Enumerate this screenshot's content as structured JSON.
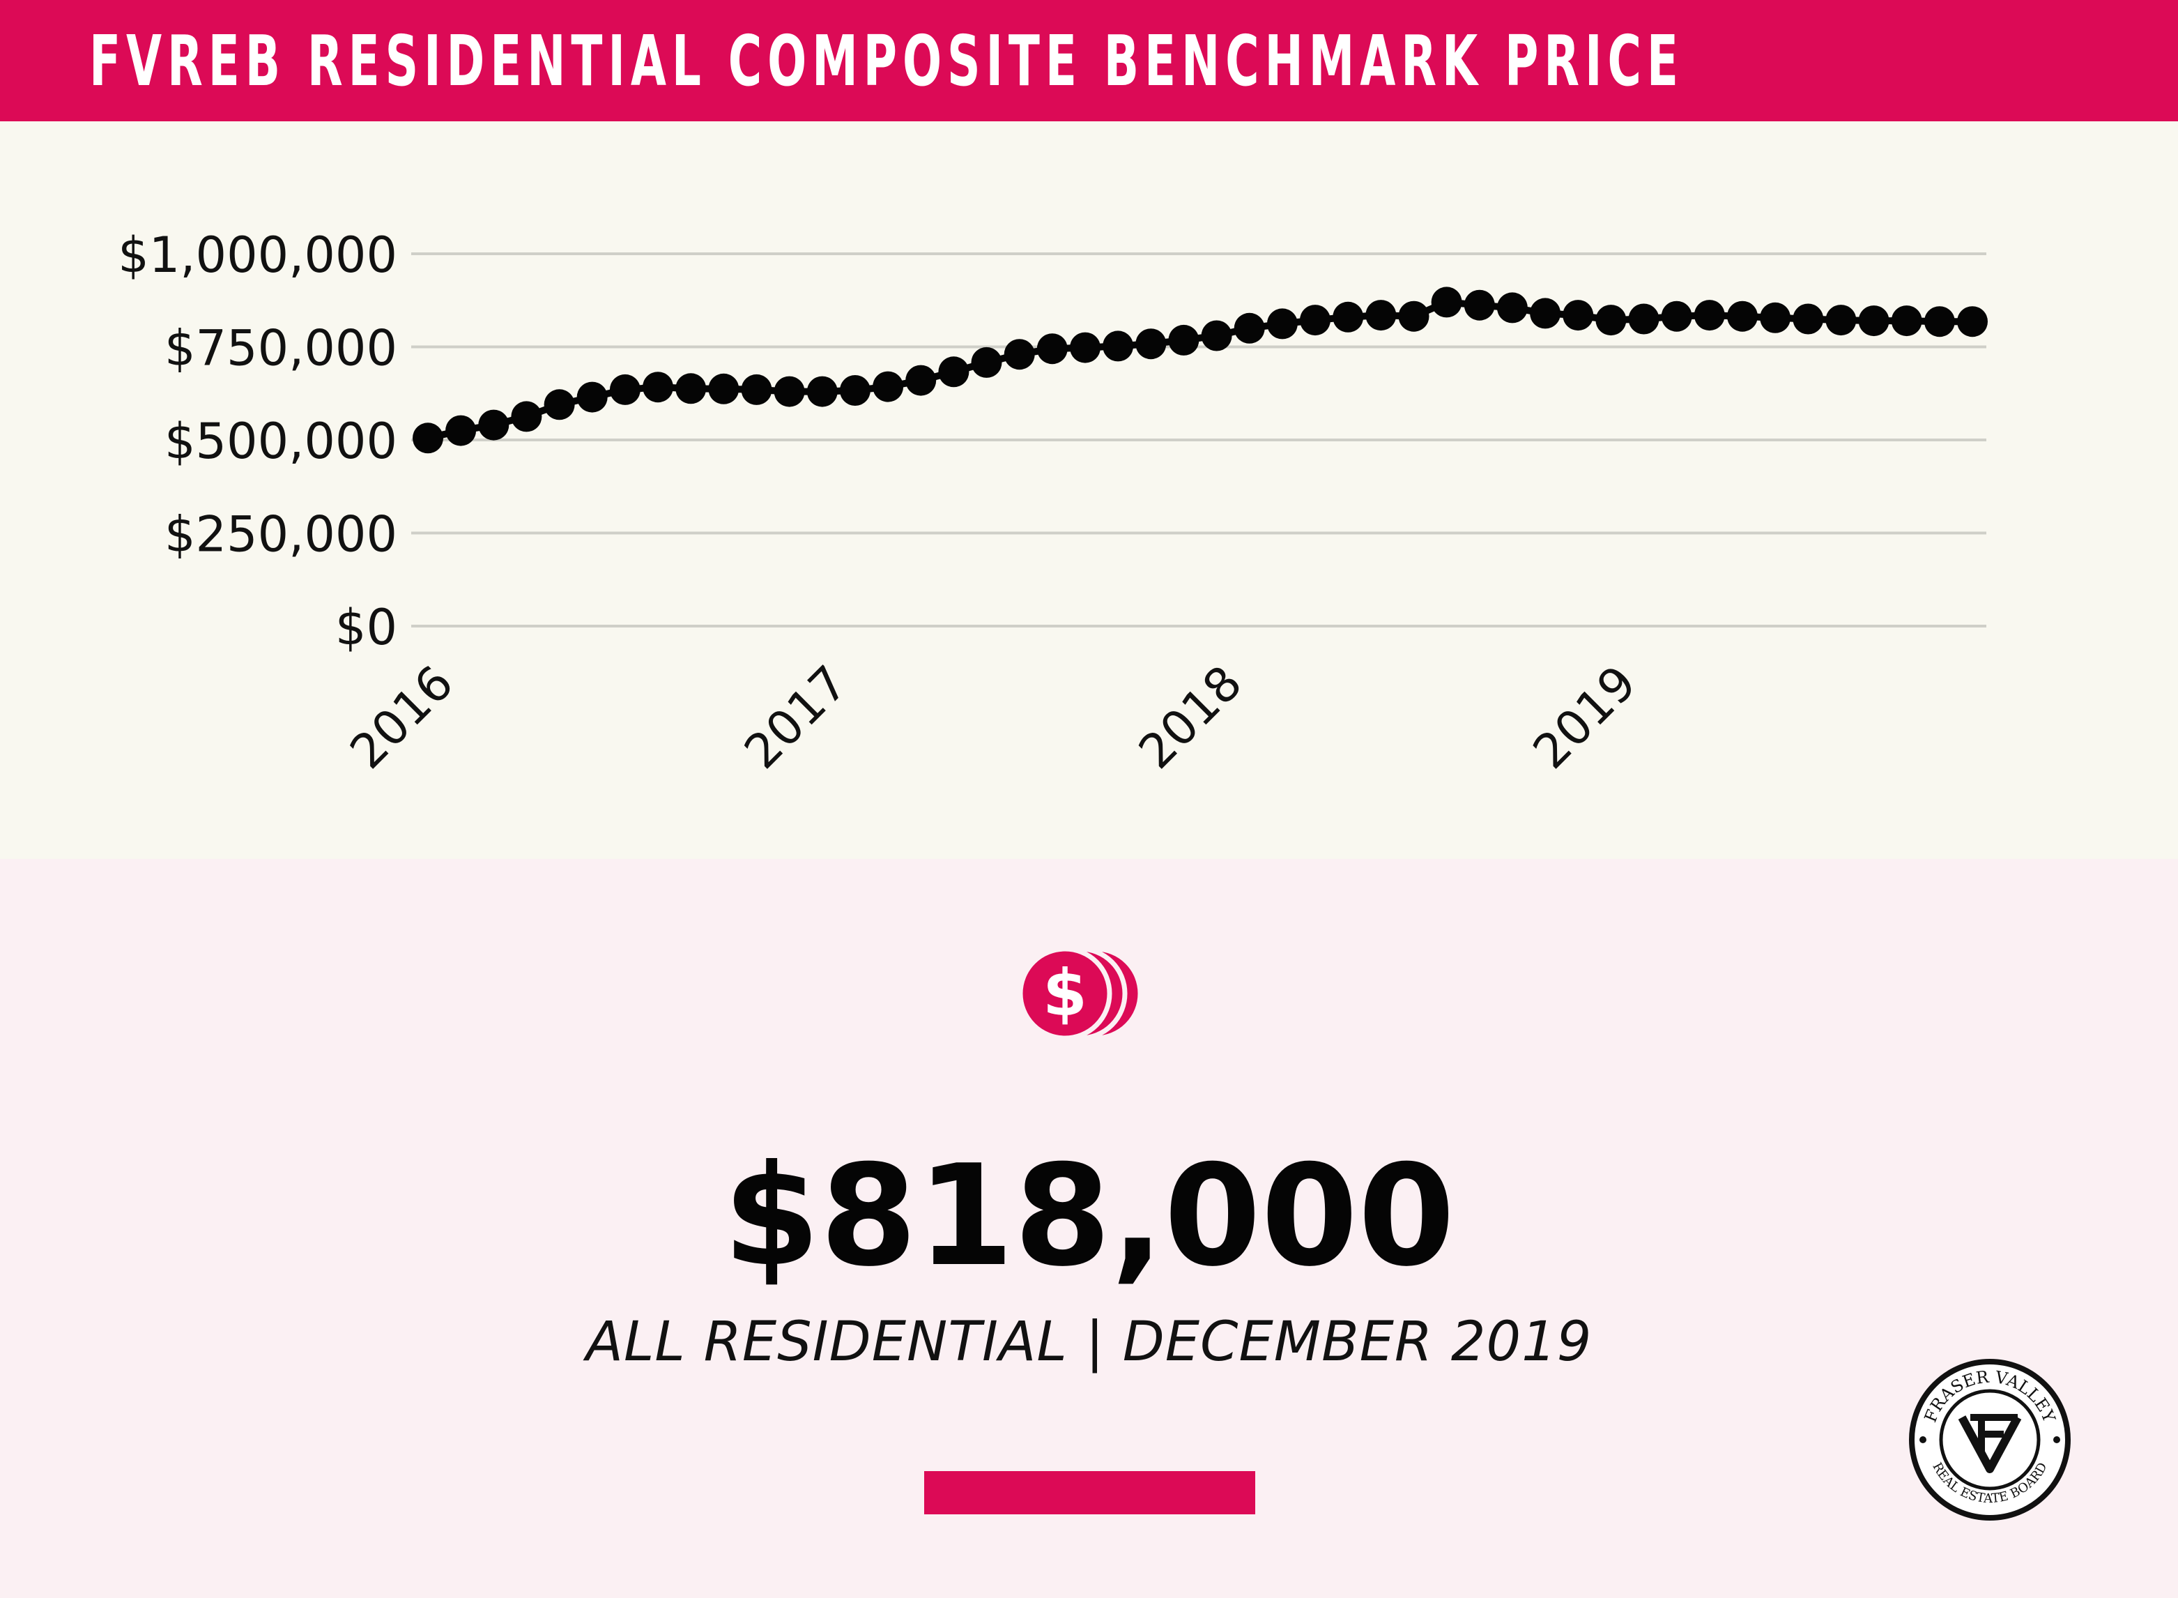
{
  "header": {
    "title": "FVREB RESIDENTIAL COMPOSITE BENCHMARK PRICE"
  },
  "chart_data": {
    "type": "line",
    "title": "",
    "xlabel": "",
    "ylabel": "",
    "x_tick_labels": [
      "2016",
      "2017",
      "2018",
      "2019"
    ],
    "y_tick_labels": [
      "$0",
      "$250,000",
      "$500,000",
      "$750,000",
      "$1,000,000"
    ],
    "y_ticks": [
      0,
      250000,
      500000,
      750000,
      1000000
    ],
    "ylim": [
      0,
      1000000
    ],
    "grid": true,
    "legend": "none",
    "series": [
      {
        "x": [
          "2016-01",
          "2016-02",
          "2016-03",
          "2016-04",
          "2016-05",
          "2016-06",
          "2016-07",
          "2016-08",
          "2016-09",
          "2016-10",
          "2016-11",
          "2016-12",
          "2017-01",
          "2017-02",
          "2017-03",
          "2017-04",
          "2017-05",
          "2017-06",
          "2017-07",
          "2017-08",
          "2017-09",
          "2017-10",
          "2017-11",
          "2017-12",
          "2018-01",
          "2018-02",
          "2018-03",
          "2018-04",
          "2018-05",
          "2018-06",
          "2018-07",
          "2018-08",
          "2018-09",
          "2018-10",
          "2018-11",
          "2018-12",
          "2019-01",
          "2019-02",
          "2019-03",
          "2019-04",
          "2019-05",
          "2019-06",
          "2019-07",
          "2019-08",
          "2019-09",
          "2019-10",
          "2019-11",
          "2019-12"
        ],
        "values": [
          505000,
          525000,
          540000,
          563000,
          595000,
          615000,
          635000,
          642000,
          638000,
          637000,
          635000,
          630000,
          630000,
          633000,
          643000,
          660000,
          683000,
          708000,
          730000,
          745000,
          748000,
          752000,
          758000,
          768000,
          780000,
          800000,
          812000,
          822000,
          830000,
          835000,
          832000,
          870000,
          862000,
          855000,
          840000,
          835000,
          822000,
          825000,
          832000,
          835000,
          832000,
          828000,
          825000,
          822000,
          820000,
          820000,
          818000,
          818000
        ]
      }
    ]
  },
  "colors": {
    "accent": "#dc0a56",
    "chart_background": "#f9f8f0",
    "page_background": "#fbf0f3",
    "marker": "#050505",
    "gridline": "#cfcfc8"
  },
  "summary": {
    "icon": "dollar-coins-icon",
    "value": "$818,000",
    "subtitle": "ALL RESIDENTIAL | DECEMBER 2019"
  },
  "logo": {
    "top_text": "FRASER VALLEY",
    "bottom_text": "REAL ESTATE BOARD"
  }
}
